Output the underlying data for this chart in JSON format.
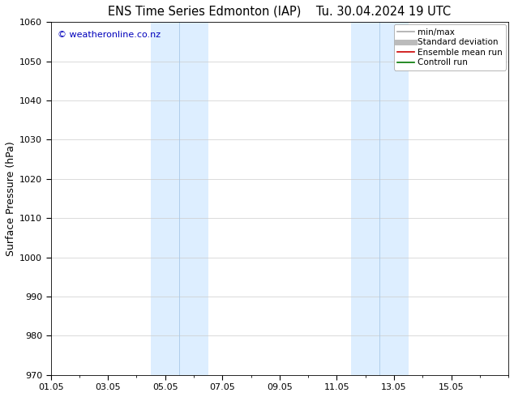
{
  "title_left": "ENS Time Series Edmonton (IAP)",
  "title_right": "Tu. 30.04.2024 19 UTC",
  "ylabel": "Surface Pressure (hPa)",
  "ylim": [
    970,
    1060
  ],
  "yticks": [
    970,
    980,
    990,
    1000,
    1010,
    1020,
    1030,
    1040,
    1050,
    1060
  ],
  "xlim": [
    0,
    16
  ],
  "xtick_positions": [
    0,
    2,
    4,
    6,
    8,
    10,
    12,
    14
  ],
  "xtick_labels": [
    "01.05",
    "03.05",
    "05.05",
    "07.05",
    "09.05",
    "11.05",
    "13.05",
    "15.05"
  ],
  "shaded_bands": [
    {
      "xmin": 3.5,
      "xmax": 5.5
    },
    {
      "xmin": 10.5,
      "xmax": 12.5
    }
  ],
  "band_color": "#ddeeff",
  "band_line_color": "#a8c8e8",
  "watermark": "© weatheronline.co.nz",
  "watermark_color": "#0000bb",
  "legend_items": [
    {
      "label": "min/max",
      "color": "#aaaaaa",
      "lw": 1.2
    },
    {
      "label": "Standard deviation",
      "color": "#bbbbbb",
      "lw": 5
    },
    {
      "label": "Ensemble mean run",
      "color": "#cc0000",
      "lw": 1.2
    },
    {
      "label": "Controll run",
      "color": "#007700",
      "lw": 1.2
    }
  ],
  "grid_color": "#cccccc",
  "bg_color": "#ffffff",
  "title_fontsize": 10.5,
  "ylabel_fontsize": 9,
  "tick_fontsize": 8,
  "legend_fontsize": 7.5,
  "watermark_fontsize": 8
}
